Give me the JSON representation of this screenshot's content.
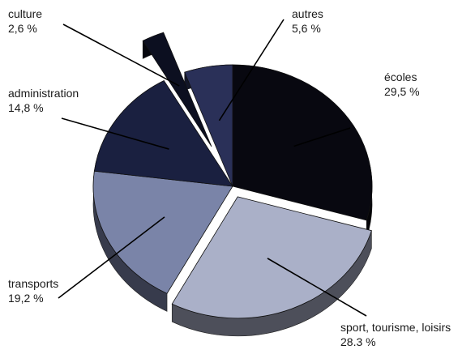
{
  "chart_data": {
    "type": "pie",
    "slices": [
      {
        "name": "écoles",
        "value": 29.5,
        "value_label": "29,5 %",
        "color": "#080810"
      },
      {
        "name": "sport, tourisme, loisirs",
        "value": 28.3,
        "value_label": "28.3 %",
        "color": "#aab0c8"
      },
      {
        "name": "transports",
        "value": 19.2,
        "value_label": "19,2 %",
        "color": "#7a84a8"
      },
      {
        "name": "administration",
        "value": 14.8,
        "value_label": "14,8 %",
        "color": "#1a2040"
      },
      {
        "name": "culture",
        "value": 2.6,
        "value_label": "2,6 %",
        "color": "#0c0f20"
      },
      {
        "name": "autres",
        "value": 5.6,
        "value_label": "5,6 %",
        "color": "#2a3058"
      }
    ],
    "title": "",
    "legend": "none",
    "exploded": [
      "sport, tourisme, loisirs",
      "culture"
    ]
  }
}
